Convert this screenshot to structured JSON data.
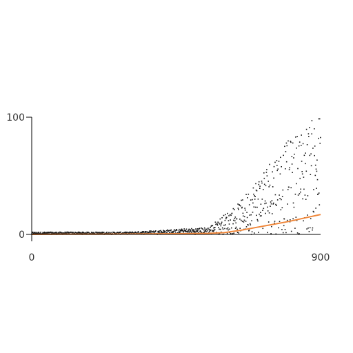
{
  "chart_data": {
    "type": "scatter",
    "title": "",
    "xlabel": "",
    "ylabel": "",
    "xlim": [
      0,
      900
    ],
    "ylim": [
      0,
      100
    ],
    "x_ticks": [
      0,
      900
    ],
    "y_ticks": [
      0,
      100
    ],
    "grid": false,
    "legend": "none",
    "colors": {
      "points": "#1a1a1a",
      "line": "#f0873a",
      "axis": "#000000",
      "text": "#333333"
    },
    "scatter": {
      "n_points": 900,
      "description_of_distribution": [
        {
          "x_range": [
            0,
            300
          ],
          "y_range": [
            0,
            2
          ]
        },
        {
          "x_range": [
            300,
            550
          ],
          "y_range": [
            0,
            5
          ]
        },
        {
          "x_range": [
            550,
            650
          ],
          "y_range": [
            0,
            25
          ]
        },
        {
          "x_range": [
            650,
            750
          ],
          "y_range": [
            0,
            60
          ]
        },
        {
          "x_range": [
            750,
            900
          ],
          "y_range": [
            0,
            105
          ]
        }
      ]
    },
    "line": {
      "x": [
        0,
        100,
        200,
        300,
        400,
        500,
        550,
        600,
        650,
        700,
        750,
        800,
        850,
        900
      ],
      "y": [
        0,
        0.1,
        0.2,
        0.3,
        0.5,
        0.7,
        0.9,
        1.5,
        3.5,
        6,
        8.5,
        11,
        14,
        17
      ]
    }
  }
}
